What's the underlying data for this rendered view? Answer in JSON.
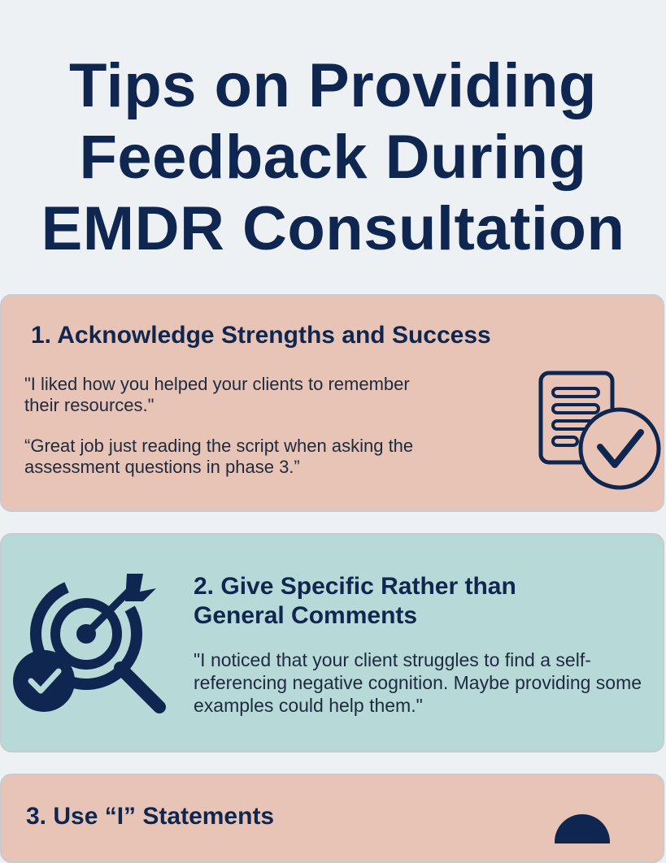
{
  "page": {
    "title_lines": [
      "Tips on Providing",
      "Feedback During",
      "EMDR Consultation"
    ]
  },
  "tips": [
    {
      "title": "1. Acknowledge Strengths and Success",
      "quotes": [
        "\"I liked how you helped your clients to remember their resources.\"",
        "“Great job just reading the script when asking the assessment questions in phase 3.”"
      ],
      "icon": "document-checkmark-icon"
    },
    {
      "title_lines": [
        "2. Give Specific Rather than",
        "General Comments"
      ],
      "quotes": [
        "\"I noticed that your client struggles to find a self-referencing negative cognition. Maybe providing some examples could help them.\""
      ],
      "icon": "target-search-check-icon"
    },
    {
      "title": "3. Use “I” Statements"
    }
  ],
  "colors": {
    "navy": "#0f2650",
    "peach": "#e7c4b5",
    "teal": "#b7d9d7",
    "background": "#eef1f4"
  }
}
